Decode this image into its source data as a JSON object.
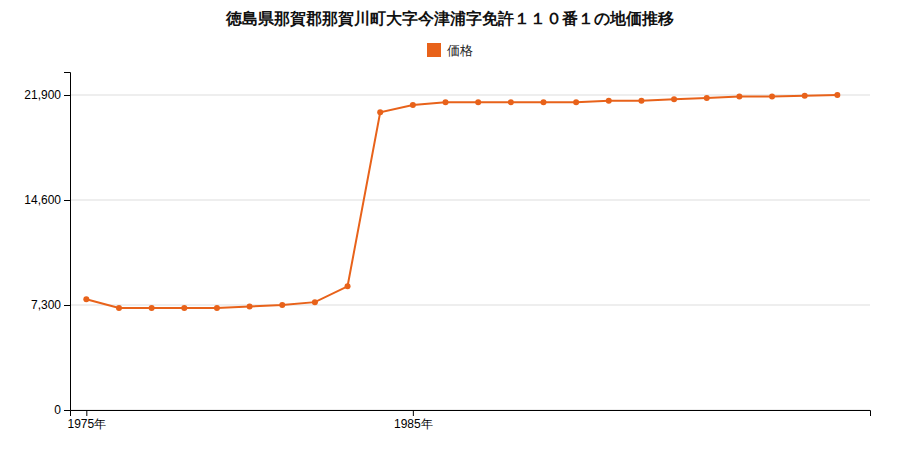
{
  "chart_data": {
    "type": "line",
    "title": "徳島県那賀郡那賀川町大字今津浦字免許１１０番１の地価推移",
    "x": [
      1975,
      1976,
      1977,
      1978,
      1979,
      1980,
      1981,
      1982,
      1983,
      1984,
      1985,
      1986,
      1987,
      1988,
      1989,
      1990,
      1991,
      1992,
      1993,
      1994,
      1995,
      1996,
      1997,
      1998
    ],
    "series": [
      {
        "name": "価格",
        "color": "#E8621A",
        "marker": "circle",
        "values": [
          7700,
          7100,
          7100,
          7100,
          7100,
          7200,
          7300,
          7500,
          8600,
          20700,
          21200,
          21400,
          21400,
          21400,
          21400,
          21400,
          21500,
          21500,
          21600,
          21700,
          21800,
          21800,
          21850,
          21900
        ]
      }
    ],
    "xlim": [
      1974.5,
      1999.0
    ],
    "xticks": [
      {
        "value": 1975,
        "label": "1975年"
      },
      {
        "value": 1985,
        "label": "1985年"
      }
    ],
    "ylim": [
      0,
      23500
    ],
    "yticks": [
      0,
      {
        "value": 7300,
        "label": "7,300"
      },
      {
        "value": 14600,
        "label": "14,600"
      },
      {
        "value": 21900,
        "label": "21,900"
      }
    ],
    "grid": true,
    "legend": "top"
  }
}
